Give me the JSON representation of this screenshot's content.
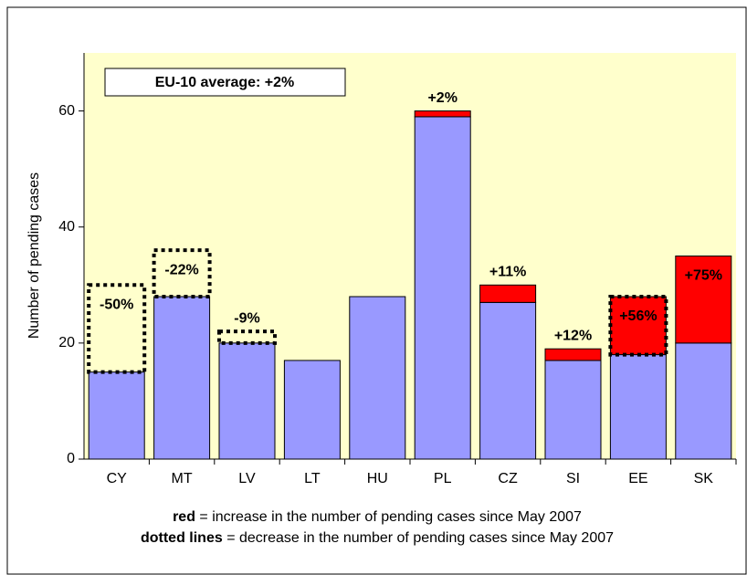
{
  "chart_data": {
    "type": "bar",
    "y_label": "Number of pending cases",
    "annotation": "EU-10 average: +2%",
    "categories": [
      "CY",
      "MT",
      "LV",
      "LT",
      "HU",
      "PL",
      "CZ",
      "SI",
      "EE",
      "SK"
    ],
    "series": [
      {
        "color": "#9999ff",
        "values": [
          15,
          28,
          20,
          17,
          28,
          59,
          27,
          17,
          18,
          20
        ]
      },
      {
        "color": "#ff0000",
        "values": [
          null,
          null,
          null,
          null,
          null,
          1,
          3,
          2,
          10,
          15
        ]
      },
      {
        "style": "dotted",
        "values": [
          15,
          8,
          2,
          null,
          null,
          null,
          null,
          null,
          10,
          null
        ]
      }
    ],
    "labels": [
      "-50%",
      "-22%",
      "-9%",
      null,
      null,
      "+2%",
      "+11%",
      "+12%",
      "+56%",
      "+75%"
    ],
    "ylim": [
      0,
      70
    ],
    "yticks": [
      0,
      20,
      40,
      60
    ],
    "plot_color": "#ffffcc",
    "footnotes": [
      {
        "bold": "red",
        "text": " = increase in the number of pending cases since May 2007"
      },
      {
        "bold": "dotted lines",
        "text": " = decrease in the number of pending cases since May 2007"
      }
    ]
  }
}
